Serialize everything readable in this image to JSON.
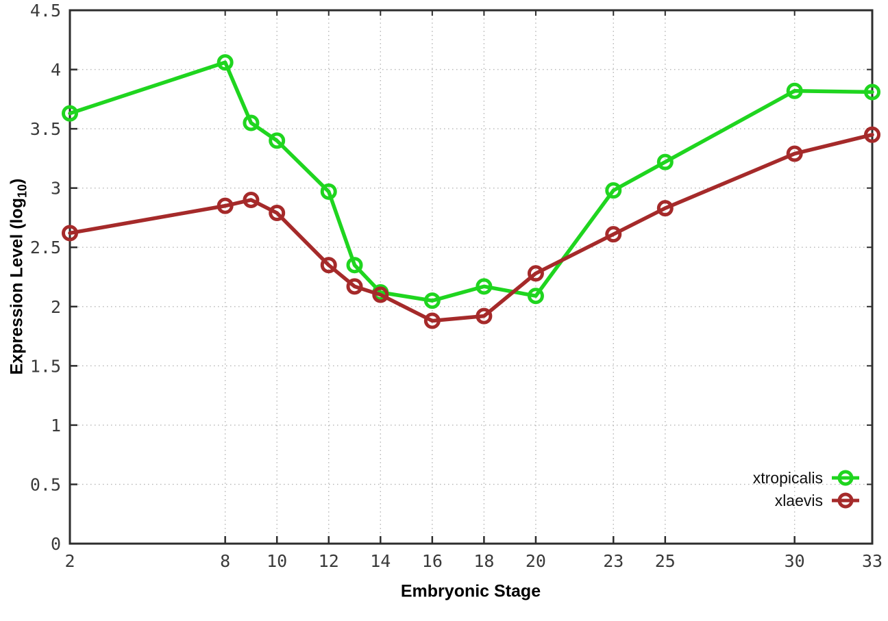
{
  "chart_data": {
    "type": "line",
    "title": "",
    "xlabel": "Embryonic Stage",
    "ylabel_main": "Expression Level (log",
    "ylabel_sub": "10",
    "ylabel_close": ")",
    "xlim": [
      2,
      33
    ],
    "ylim": [
      0,
      4.5
    ],
    "grid": true,
    "legend_position": "inside-bottom-right",
    "x": [
      2,
      8,
      9,
      10,
      12,
      13,
      14,
      16,
      18,
      20,
      23,
      25,
      30,
      33
    ],
    "xticks": [
      2,
      8,
      10,
      12,
      14,
      16,
      18,
      20,
      23,
      25,
      30,
      33
    ],
    "xtick_labels": [
      "2",
      "8",
      "10",
      "12",
      "14",
      "16",
      "18",
      "20",
      "23",
      "25",
      "30",
      "33"
    ],
    "yticks": [
      0,
      0.5,
      1,
      1.5,
      2,
      2.5,
      3,
      3.5,
      4,
      4.5
    ],
    "ytick_labels": [
      "0",
      "0.5",
      "1",
      "1.5",
      "2",
      "2.5",
      "3",
      "3.5",
      "4",
      "4.5"
    ],
    "series": [
      {
        "name": "xtropicalis",
        "color": "#1fd51f",
        "values": [
          3.63,
          4.06,
          3.55,
          3.4,
          2.97,
          2.35,
          2.12,
          2.05,
          2.17,
          2.09,
          2.98,
          3.22,
          3.82,
          3.81
        ]
      },
      {
        "name": "xlaevis",
        "color": "#a52a2a",
        "values": [
          2.62,
          2.85,
          2.9,
          2.79,
          2.35,
          2.17,
          2.1,
          1.88,
          1.92,
          2.28,
          2.61,
          2.83,
          3.29,
          3.45
        ]
      }
    ],
    "colors": {
      "border": "#2d2d2d",
      "grid": "#b5b5b5",
      "tick_label": "#3a3a3a",
      "background": "#ffffff"
    }
  }
}
